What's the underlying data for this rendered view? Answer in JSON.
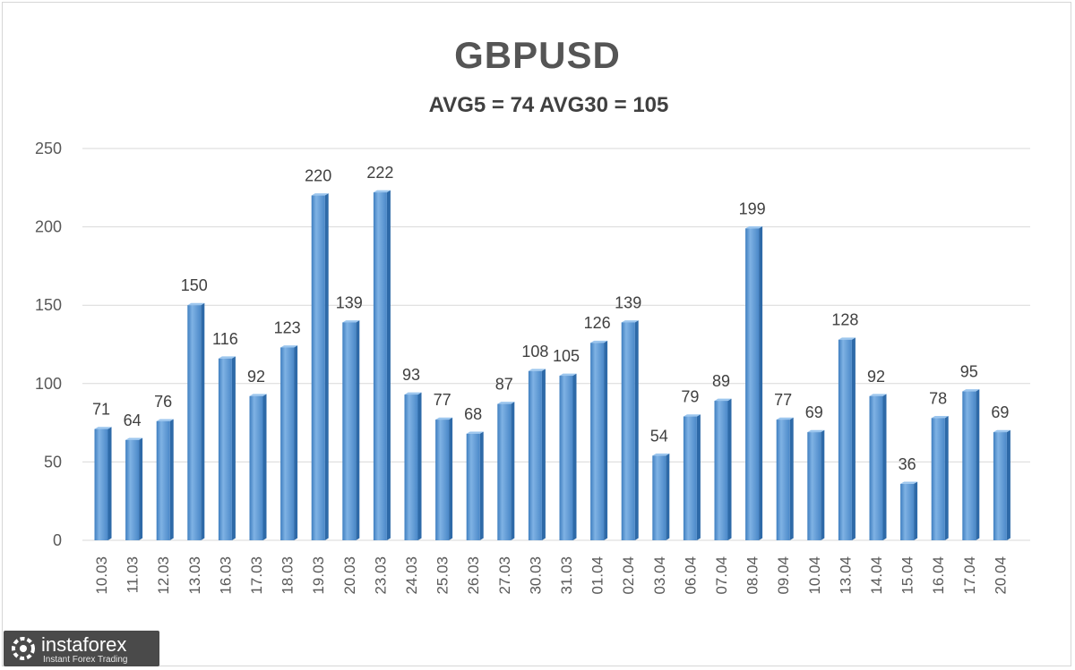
{
  "chart_data": {
    "type": "bar",
    "title": "GBPUSD",
    "subtitle": "AVG5 = 74 AVG30 = 105",
    "xlabel": "",
    "ylabel": "",
    "ylim": [
      0,
      250
    ],
    "yticks": [
      0,
      50,
      100,
      150,
      200,
      250
    ],
    "grid": true,
    "legend": "none",
    "bar_color": "#5b9bd5",
    "categories": [
      "10.03",
      "11.03",
      "12.03",
      "13.03",
      "16.03",
      "17.03",
      "18.03",
      "19.03",
      "20.03",
      "23.03",
      "24.03",
      "25.03",
      "26.03",
      "27.03",
      "30.03",
      "31.03",
      "01.04",
      "02.04",
      "03.04",
      "06.04",
      "07.04",
      "08.04",
      "09.04",
      "10.04",
      "13.04",
      "14.04",
      "15.04",
      "16.04",
      "17.04",
      "20.04"
    ],
    "values": [
      71,
      64,
      76,
      150,
      116,
      92,
      123,
      220,
      139,
      222,
      93,
      77,
      68,
      87,
      108,
      105,
      126,
      139,
      54,
      79,
      89,
      199,
      77,
      69,
      128,
      92,
      36,
      78,
      95,
      69
    ]
  },
  "watermark": {
    "name": "instaforex",
    "tagline": "Instant Forex Trading"
  }
}
